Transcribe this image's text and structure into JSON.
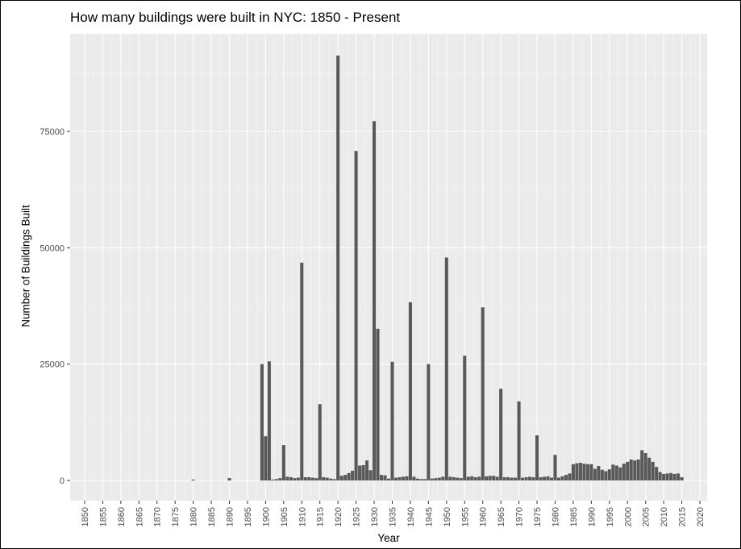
{
  "chart_data": {
    "type": "bar",
    "title": "How many buildings were built in NYC: 1850 - Present",
    "xlabel": "Year",
    "ylabel": "Number of Buildings Built",
    "xlim": [
      1846,
      2022
    ],
    "ylim": [
      0,
      97000
    ],
    "x_ticks": [
      1850,
      1855,
      1860,
      1865,
      1870,
      1875,
      1880,
      1885,
      1890,
      1895,
      1900,
      1905,
      1910,
      1915,
      1920,
      1925,
      1930,
      1935,
      1940,
      1945,
      1950,
      1955,
      1960,
      1965,
      1970,
      1975,
      1980,
      1985,
      1990,
      1995,
      2000,
      2005,
      2010,
      2015,
      2020
    ],
    "y_ticks": [
      0,
      25000,
      50000,
      75000
    ],
    "y_tick_labels": [
      "0",
      "25000",
      "50000",
      "75000"
    ],
    "grid": true,
    "panel_color": "#ebebeb",
    "bar_color": "#595959",
    "x": [
      1880,
      1890,
      1899,
      1900,
      1901,
      1902,
      1903,
      1904,
      1905,
      1906,
      1907,
      1908,
      1909,
      1910,
      1911,
      1912,
      1913,
      1914,
      1915,
      1916,
      1917,
      1918,
      1919,
      1920,
      1921,
      1922,
      1923,
      1924,
      1925,
      1926,
      1927,
      1928,
      1929,
      1930,
      1931,
      1932,
      1933,
      1934,
      1935,
      1936,
      1937,
      1938,
      1939,
      1940,
      1941,
      1942,
      1943,
      1944,
      1945,
      1946,
      1947,
      1948,
      1949,
      1950,
      1951,
      1952,
      1953,
      1954,
      1955,
      1956,
      1957,
      1958,
      1959,
      1960,
      1961,
      1962,
      1963,
      1964,
      1965,
      1966,
      1967,
      1968,
      1969,
      1970,
      1971,
      1972,
      1973,
      1974,
      1975,
      1976,
      1977,
      1978,
      1979,
      1980,
      1981,
      1982,
      1983,
      1984,
      1985,
      1986,
      1987,
      1988,
      1989,
      1990,
      1991,
      1992,
      1993,
      1994,
      1995,
      1996,
      1997,
      1998,
      1999,
      2000,
      2001,
      2002,
      2003,
      2004,
      2005,
      2006,
      2007,
      2008,
      2009,
      2010,
      2011,
      2012,
      2013,
      2014,
      2015
    ],
    "values": [
      200,
      500,
      25000,
      9500,
      25600,
      200,
      300,
      500,
      7600,
      800,
      700,
      500,
      600,
      46800,
      700,
      700,
      600,
      500,
      16400,
      700,
      600,
      400,
      300,
      91300,
      1000,
      1200,
      1600,
      2100,
      70800,
      3200,
      3300,
      4300,
      2200,
      77200,
      32600,
      1200,
      1100,
      400,
      25500,
      600,
      700,
      800,
      900,
      38300,
      800,
      400,
      300,
      300,
      25000,
      400,
      500,
      600,
      800,
      47900,
      800,
      700,
      600,
      500,
      26800,
      800,
      900,
      700,
      800,
      37200,
      900,
      1000,
      1000,
      800,
      19700,
      700,
      700,
      600,
      600,
      17000,
      600,
      700,
      800,
      700,
      9700,
      700,
      800,
      900,
      600,
      5500,
      600,
      900,
      1200,
      1500,
      3500,
      3700,
      3800,
      3600,
      3500,
      3500,
      2500,
      3100,
      2300,
      2000,
      2400,
      3400,
      3200,
      2800,
      3600,
      4000,
      4500,
      4300,
      4500,
      6500,
      5900,
      4900,
      4000,
      2900,
      1800,
      1400,
      1500,
      1600,
      1400,
      1500,
      700
    ]
  }
}
